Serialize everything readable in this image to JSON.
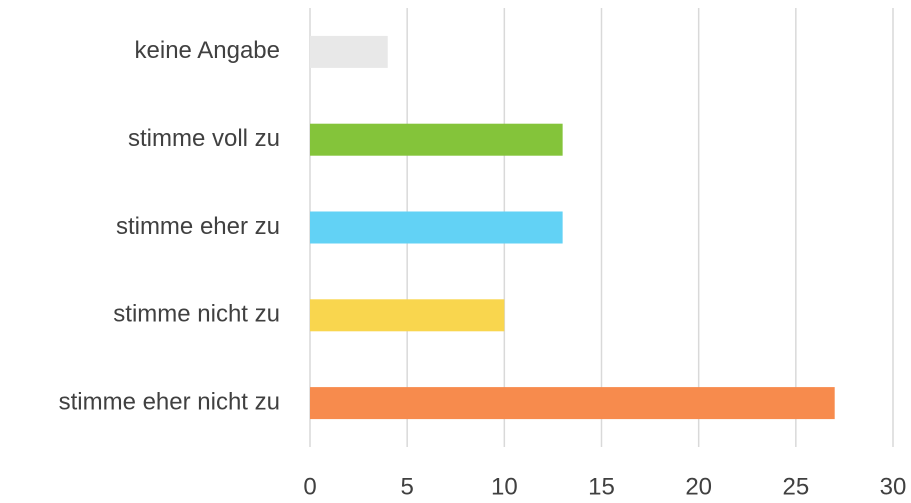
{
  "chart_data": {
    "type": "bar",
    "orientation": "horizontal",
    "categories": [
      "keine Angabe",
      "stimme voll zu",
      "stimme eher zu",
      "stimme nicht zu",
      "stimme eher nicht zu"
    ],
    "values": [
      4,
      13,
      13,
      10,
      27
    ],
    "colors": [
      "#e8e8e8",
      "#84c43a",
      "#62d2f5",
      "#f9d64e",
      "#f78b4d"
    ],
    "xlim": [
      0,
      30
    ],
    "xticks": [
      0,
      5,
      10,
      15,
      20,
      25,
      30
    ],
    "grid": true
  }
}
